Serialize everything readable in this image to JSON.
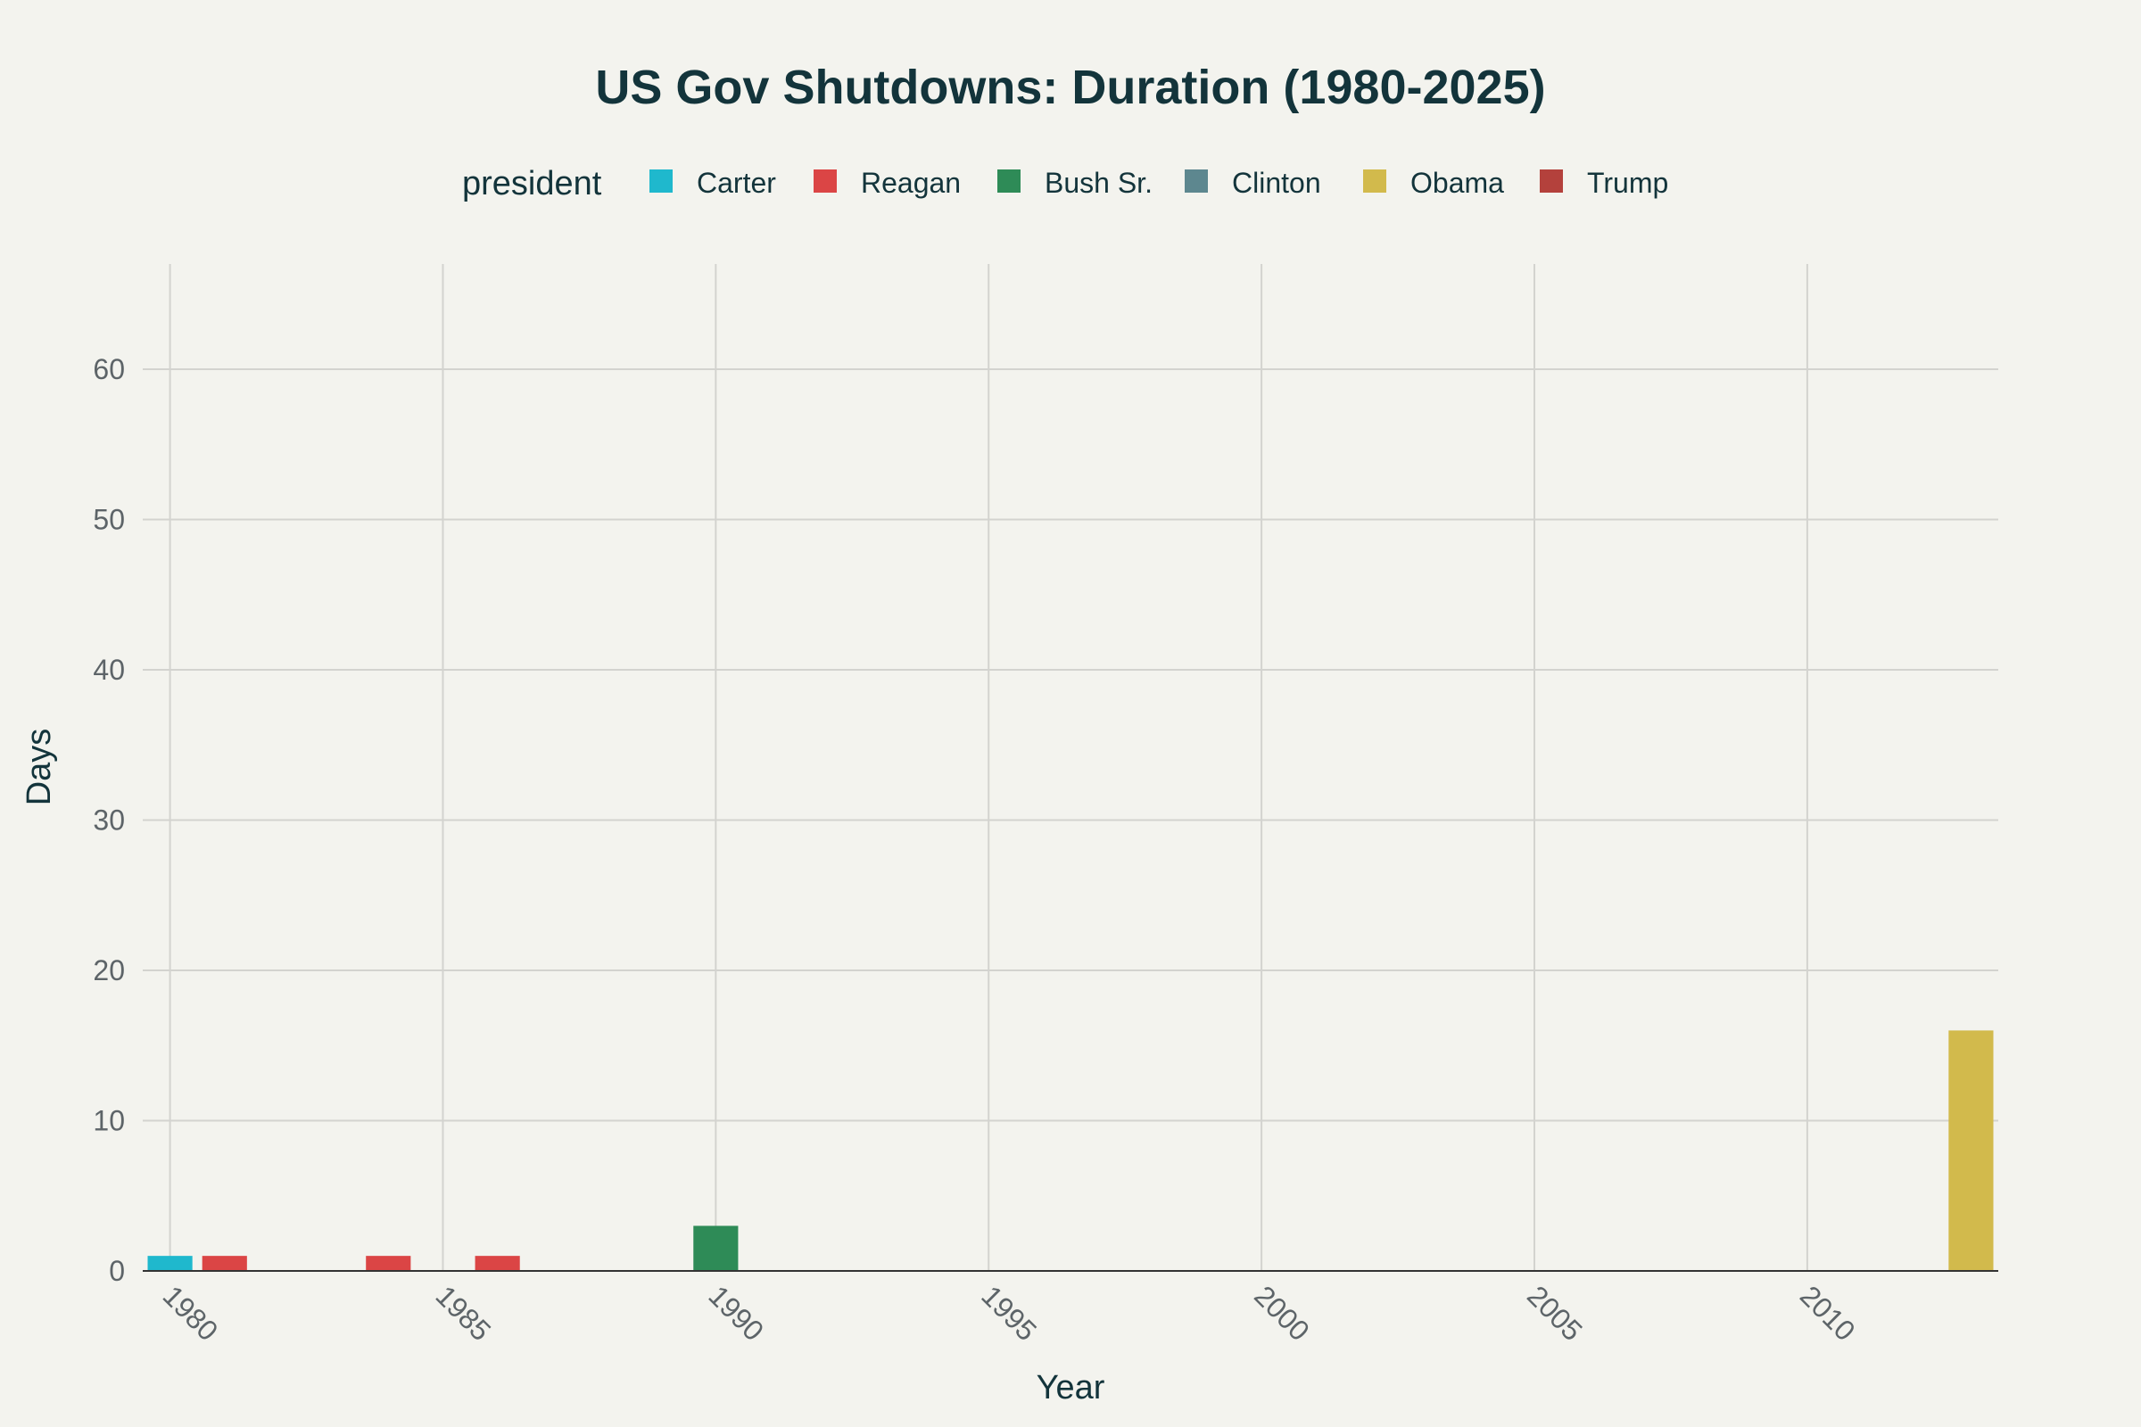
{
  "chart_data": {
    "type": "bar",
    "title": "US Gov Shutdowns: Duration (1980-2025)",
    "xlabel": "Year",
    "ylabel": "Days",
    "xlim": [
      1979.5,
      2013.5
    ],
    "ylim": [
      0,
      67
    ],
    "x_ticks": [
      1980,
      1985,
      1990,
      1995,
      2000,
      2005,
      2010
    ],
    "y_ticks": [
      0,
      10,
      20,
      30,
      40,
      50,
      60
    ],
    "grid": true,
    "legend": {
      "title": "president",
      "placement": "top"
    },
    "series": [
      {
        "name": "Carter",
        "color": "#1fb8cd",
        "points": [
          {
            "x": 1980,
            "y": 1
          }
        ]
      },
      {
        "name": "Reagan",
        "color": "#db4545",
        "points": [
          {
            "x": 1981,
            "y": 1
          },
          {
            "x": 1984,
            "y": 1
          },
          {
            "x": 1986,
            "y": 1
          }
        ]
      },
      {
        "name": "Bush Sr.",
        "color": "#2e8b57",
        "points": [
          {
            "x": 1990,
            "y": 3
          }
        ]
      },
      {
        "name": "Clinton",
        "color": "#5d878f",
        "points": []
      },
      {
        "name": "Obama",
        "color": "#d2ba4c",
        "points": [
          {
            "x": 2013,
            "y": 16
          }
        ]
      },
      {
        "name": "Trump",
        "color": "#b4413c",
        "points": []
      }
    ]
  }
}
